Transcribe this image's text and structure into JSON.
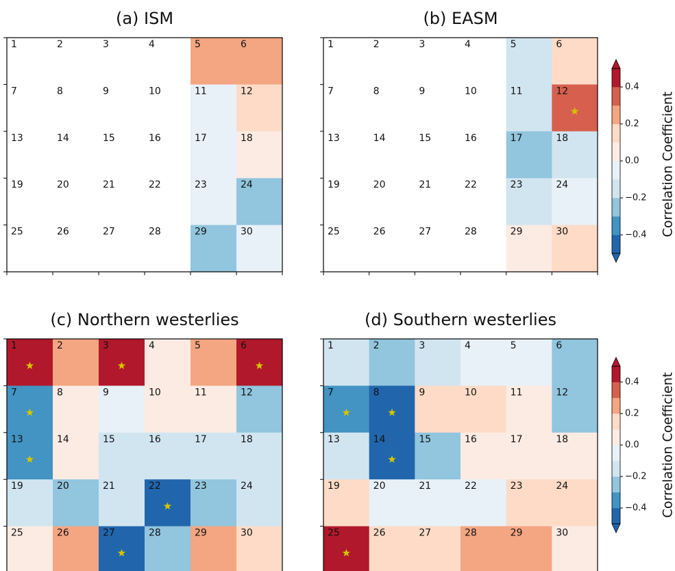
{
  "colormap": {
    "levels": [
      -0.5,
      -0.4,
      -0.3,
      -0.2,
      -0.1,
      0.0,
      0.1,
      0.2,
      0.3,
      0.4,
      0.5
    ],
    "colors": [
      "#2166ac",
      "#4393c3",
      "#92c5de",
      "#d1e5f0",
      "#e8f1f7",
      "#fbebe3",
      "#fddbc7",
      "#f4a582",
      "#d6604d",
      "#b2182b"
    ]
  },
  "cell_labels": [
    "1",
    "2",
    "3",
    "4",
    "5",
    "6",
    "7",
    "8",
    "9",
    "10",
    "11",
    "12",
    "13",
    "14",
    "15",
    "16",
    "17",
    "18",
    "19",
    "20",
    "21",
    "22",
    "23",
    "24",
    "25",
    "26",
    "27",
    "28",
    "29",
    "30"
  ],
  "chart_data": [
    {
      "type": "heatmap",
      "title": "(a) ISM",
      "values": [
        null,
        null,
        null,
        null,
        0.25,
        0.25,
        null,
        null,
        null,
        null,
        -0.05,
        0.15,
        null,
        null,
        null,
        null,
        -0.05,
        0.05,
        null,
        null,
        null,
        null,
        -0.05,
        -0.25,
        null,
        null,
        null,
        null,
        -0.25,
        -0.05
      ],
      "significant_cells": []
    },
    {
      "type": "heatmap",
      "title": "(b) EASM",
      "values": [
        null,
        null,
        null,
        null,
        -0.15,
        0.15,
        null,
        null,
        null,
        null,
        -0.15,
        0.35,
        null,
        null,
        null,
        null,
        -0.25,
        -0.15,
        null,
        null,
        null,
        null,
        -0.15,
        -0.05,
        null,
        null,
        null,
        null,
        0.05,
        0.15
      ],
      "significant_cells": [
        12
      ],
      "colorbar": {
        "label": "Correlation Coefficient",
        "lim": [
          -0.5,
          0.5
        ],
        "ticks": [
          0.4,
          0.2,
          {
            "value": 0.0,
            "label": "0.0"
          },
          {
            "value": -0.2,
            "label": "−0.2"
          },
          {
            "value": -0.4,
            "label": "−0.4"
          }
        ]
      }
    },
    {
      "type": "heatmap",
      "title": "(c) Northern westerlies",
      "values": [
        0.45,
        0.25,
        0.45,
        0.05,
        0.25,
        0.45,
        -0.35,
        0.05,
        -0.05,
        0.05,
        0.05,
        -0.25,
        -0.35,
        0.05,
        -0.15,
        -0.15,
        -0.15,
        -0.15,
        -0.15,
        -0.25,
        -0.15,
        -0.45,
        -0.25,
        -0.15,
        0.05,
        0.25,
        -0.45,
        -0.25,
        0.25,
        0.15
      ],
      "significant_cells": [
        1,
        3,
        6,
        7,
        13,
        22,
        27
      ]
    },
    {
      "type": "heatmap",
      "title": "(d) Southern westerlies",
      "values": [
        -0.15,
        -0.25,
        -0.15,
        -0.05,
        -0.05,
        -0.25,
        -0.35,
        -0.45,
        0.15,
        0.15,
        0.05,
        -0.25,
        -0.15,
        -0.45,
        -0.25,
        0.05,
        0.05,
        0.05,
        0.15,
        -0.05,
        -0.05,
        -0.05,
        0.15,
        0.15,
        0.45,
        0.15,
        0.15,
        0.25,
        0.25,
        0.05
      ],
      "significant_cells": [
        7,
        8,
        14,
        25
      ],
      "colorbar": {
        "label": "Correlation Coefficient",
        "lim": [
          -0.5,
          0.5
        ],
        "ticks": [
          0.4,
          0.2,
          {
            "value": 0.0,
            "label": "0.0"
          },
          {
            "value": -0.2,
            "label": "−0.2"
          },
          {
            "value": -0.4,
            "label": "−0.4"
          }
        ]
      }
    }
  ]
}
